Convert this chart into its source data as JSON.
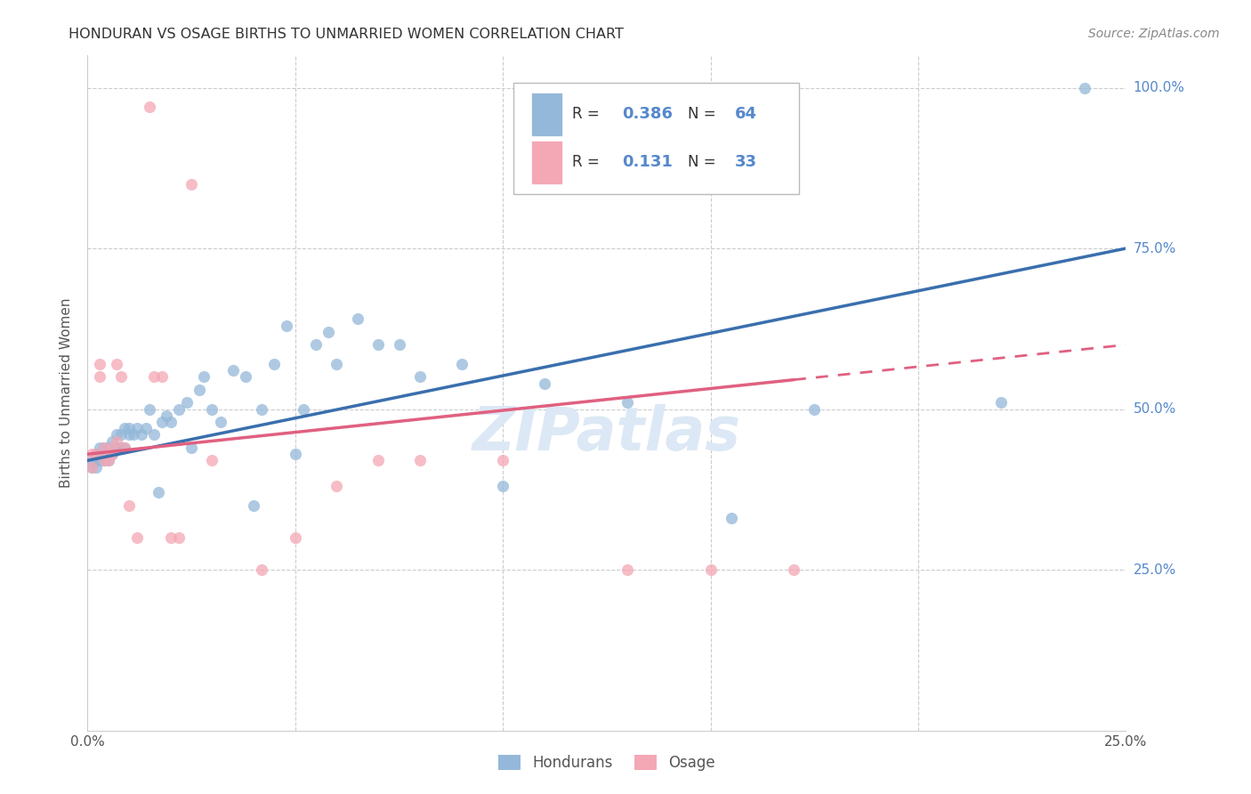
{
  "title": "HONDURAN VS OSAGE BIRTHS TO UNMARRIED WOMEN CORRELATION CHART",
  "source": "Source: ZipAtlas.com",
  "ylabel": "Births to Unmarried Women",
  "xlim": [
    0.0,
    0.25
  ],
  "ylim": [
    0.0,
    1.05
  ],
  "honduran_color": "#94b8d9",
  "osage_color": "#f4a7b5",
  "honduran_line_color": "#3a6fad",
  "osage_line_color": "#e06080",
  "r_honduran": 0.386,
  "n_honduran": 64,
  "r_osage": 0.131,
  "n_osage": 33,
  "watermark": "ZIPatlas",
  "hondurans_x": [
    0.001,
    0.001,
    0.002,
    0.002,
    0.002,
    0.003,
    0.003,
    0.003,
    0.004,
    0.004,
    0.004,
    0.005,
    0.005,
    0.005,
    0.006,
    0.006,
    0.007,
    0.007,
    0.008,
    0.008,
    0.009,
    0.009,
    0.01,
    0.01,
    0.011,
    0.012,
    0.013,
    0.014,
    0.015,
    0.016,
    0.017,
    0.018,
    0.019,
    0.02,
    0.022,
    0.024,
    0.025,
    0.027,
    0.028,
    0.03,
    0.032,
    0.035,
    0.038,
    0.04,
    0.042,
    0.045,
    0.048,
    0.05,
    0.052,
    0.055,
    0.058,
    0.06,
    0.065,
    0.07,
    0.075,
    0.08,
    0.09,
    0.1,
    0.11,
    0.13,
    0.155,
    0.175,
    0.22,
    0.24
  ],
  "hondurans_y": [
    0.42,
    0.41,
    0.43,
    0.42,
    0.41,
    0.44,
    0.43,
    0.42,
    0.44,
    0.43,
    0.42,
    0.44,
    0.43,
    0.42,
    0.45,
    0.43,
    0.46,
    0.44,
    0.46,
    0.44,
    0.47,
    0.44,
    0.47,
    0.46,
    0.46,
    0.47,
    0.46,
    0.47,
    0.5,
    0.46,
    0.37,
    0.48,
    0.49,
    0.48,
    0.5,
    0.51,
    0.44,
    0.53,
    0.55,
    0.5,
    0.48,
    0.56,
    0.55,
    0.35,
    0.5,
    0.57,
    0.63,
    0.43,
    0.5,
    0.6,
    0.62,
    0.57,
    0.64,
    0.6,
    0.6,
    0.55,
    0.57,
    0.38,
    0.54,
    0.51,
    0.33,
    0.5,
    0.51,
    1.0
  ],
  "osage_x": [
    0.001,
    0.001,
    0.002,
    0.003,
    0.003,
    0.004,
    0.004,
    0.005,
    0.005,
    0.006,
    0.006,
    0.007,
    0.007,
    0.008,
    0.009,
    0.01,
    0.012,
    0.015,
    0.016,
    0.018,
    0.02,
    0.022,
    0.025,
    0.03,
    0.042,
    0.05,
    0.06,
    0.07,
    0.08,
    0.1,
    0.13,
    0.15,
    0.17
  ],
  "osage_y": [
    0.43,
    0.41,
    0.43,
    0.57,
    0.55,
    0.44,
    0.42,
    0.43,
    0.42,
    0.44,
    0.43,
    0.45,
    0.57,
    0.55,
    0.44,
    0.35,
    0.3,
    0.97,
    0.55,
    0.55,
    0.3,
    0.3,
    0.85,
    0.42,
    0.25,
    0.3,
    0.38,
    0.42,
    0.42,
    0.42,
    0.25,
    0.25,
    0.25
  ],
  "line_blue_x0": 0.0,
  "line_blue_x1": 0.25,
  "line_blue_y0": 0.42,
  "line_blue_y1": 0.75,
  "line_pink_x0": 0.0,
  "line_pink_x1": 0.25,
  "line_pink_y0": 0.43,
  "line_pink_y1": 0.6
}
